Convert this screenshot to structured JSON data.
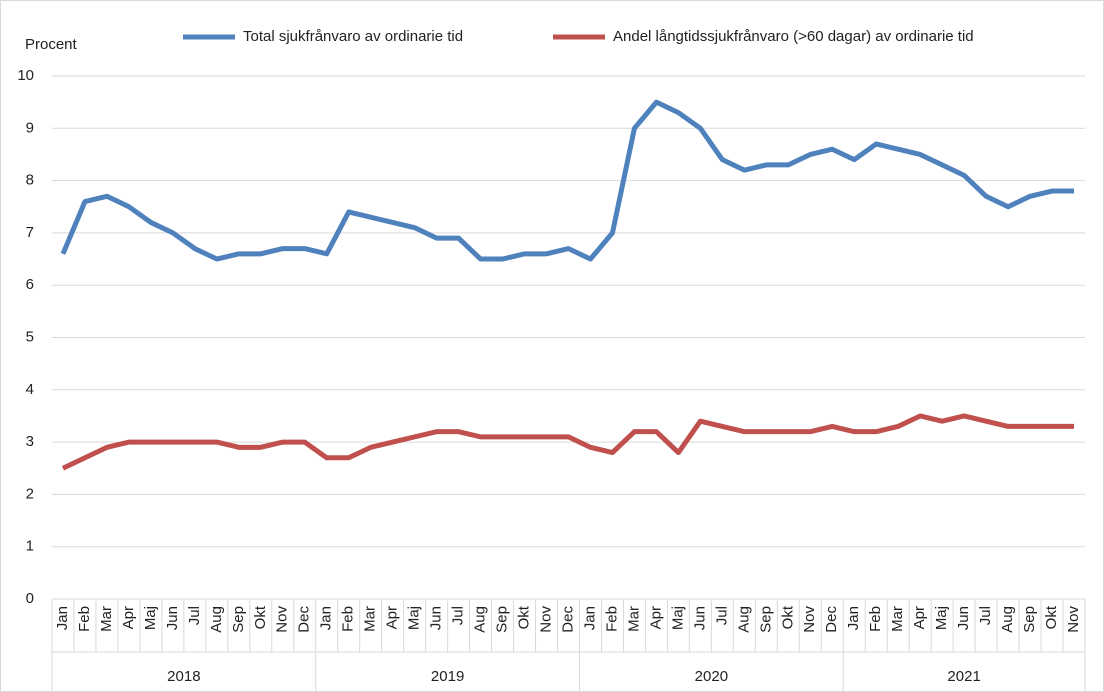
{
  "chart_data": {
    "type": "line",
    "y_label": "Procent",
    "groups": [
      {
        "name": "2018",
        "categories": [
          "Jan",
          "Feb",
          "Mar",
          "Apr",
          "Maj",
          "Jun",
          "Jul",
          "Aug",
          "Sep",
          "Okt",
          "Nov",
          "Dec"
        ]
      },
      {
        "name": "2019",
        "categories": [
          "Jan",
          "Feb",
          "Mar",
          "Apr",
          "Maj",
          "Jun",
          "Jul",
          "Aug",
          "Sep",
          "Okt",
          "Nov",
          "Dec"
        ]
      },
      {
        "name": "2020",
        "categories": [
          "Jan",
          "Feb",
          "Mar",
          "Apr",
          "Maj",
          "Jun",
          "Jul",
          "Aug",
          "Sep",
          "Okt",
          "Nov",
          "Dec"
        ]
      },
      {
        "name": "2021",
        "categories": [
          "Jan",
          "Feb",
          "Mar",
          "Apr",
          "Maj",
          "Jun",
          "Jul",
          "Aug",
          "Sep",
          "Okt",
          "Nov"
        ]
      }
    ],
    "series": [
      {
        "name": "Total sjukfrånvaro av ordinarie tid",
        "color": "#4f81bd",
        "values": [
          6.6,
          7.6,
          7.7,
          7.5,
          7.2,
          7.0,
          6.7,
          6.5,
          6.6,
          6.6,
          6.7,
          6.7,
          6.6,
          7.4,
          7.3,
          7.2,
          7.1,
          6.9,
          6.9,
          6.5,
          6.5,
          6.6,
          6.6,
          6.7,
          6.5,
          7.0,
          9.0,
          9.5,
          9.3,
          9.0,
          8.4,
          8.2,
          8.3,
          8.3,
          8.5,
          8.6,
          8.4,
          8.7,
          8.6,
          8.5,
          8.3,
          8.1,
          7.7,
          7.5,
          7.7,
          7.8,
          7.8
        ]
      },
      {
        "name": "Andel långtidssjukfrånvaro (>60 dagar) av ordinarie tid",
        "color": "#c0504d",
        "values": [
          2.5,
          2.7,
          2.9,
          3.0,
          3.0,
          3.0,
          3.0,
          3.0,
          2.9,
          2.9,
          3.0,
          3.0,
          2.7,
          2.7,
          2.9,
          3.0,
          3.1,
          3.2,
          3.2,
          3.1,
          3.1,
          3.1,
          3.1,
          3.1,
          2.9,
          2.8,
          3.2,
          3.2,
          2.8,
          3.4,
          3.3,
          3.2,
          3.2,
          3.2,
          3.2,
          3.3,
          3.2,
          3.2,
          3.3,
          3.5,
          3.4,
          3.5,
          3.4,
          3.3,
          3.3,
          3.3,
          3.3
        ]
      }
    ],
    "ylim": [
      0,
      10
    ],
    "yticks": [
      0,
      1,
      2,
      3,
      4,
      5,
      6,
      7,
      8,
      9,
      10
    ],
    "grid": true
  }
}
